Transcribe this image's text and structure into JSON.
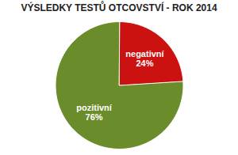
{
  "chart_data": {
    "type": "pie",
    "title": "VÝSLEDKY TESTŮ OTCOVSTVÍ - ROK 2014",
    "categories": [
      "negativní",
      "pozitivní"
    ],
    "values": [
      24,
      76
    ],
    "value_labels": [
      "24%",
      "76%"
    ],
    "colors": [
      "#cc1111",
      "#6b8c2a"
    ],
    "data_labels": true
  }
}
